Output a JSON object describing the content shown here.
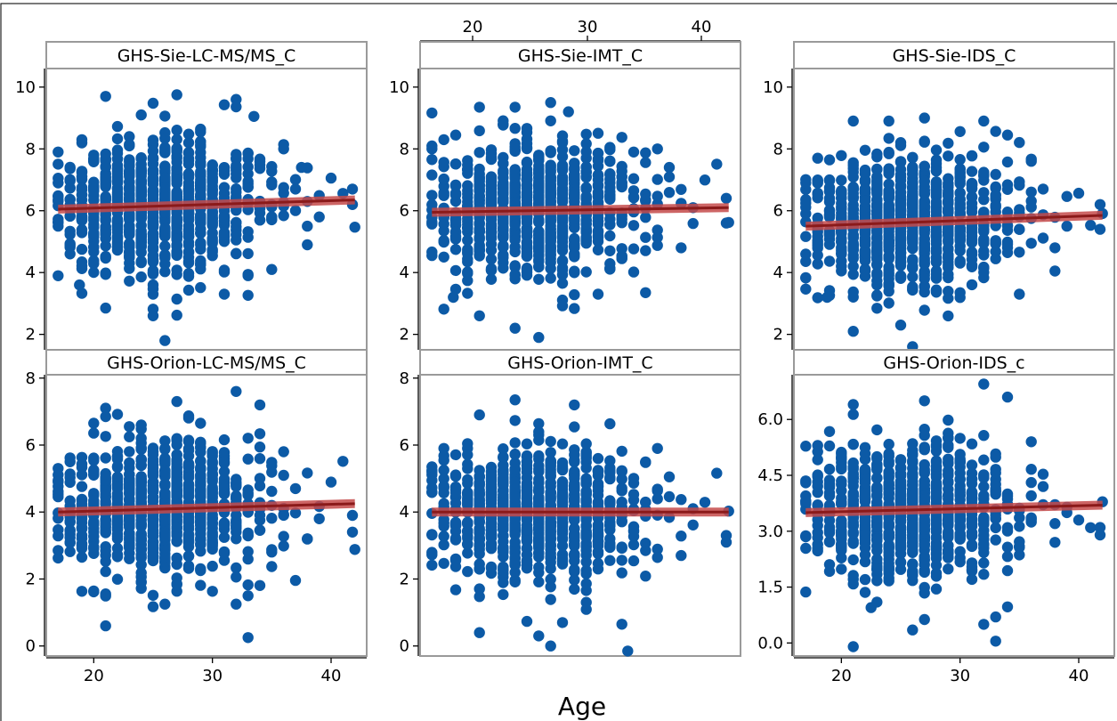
{
  "figure": {
    "xlabel": "Age"
  },
  "colors": {
    "points": "#0c5aa6",
    "fit_line": "#8b1a1a",
    "fit_band": "#c44a4a",
    "frame": "#9a9a9a"
  },
  "chart_data": [
    {
      "type": "scatter",
      "title": "GHS-Sie-LC-MS/MS_C",
      "xlim": [
        16,
        43
      ],
      "ylim": [
        1.5,
        10.6
      ],
      "yticks": [
        "2",
        "4",
        "6",
        "8",
        "10"
      ],
      "xticks": [],
      "fit": [
        [
          17,
          6.05
        ],
        [
          42,
          6.35
        ]
      ],
      "n_points": 820,
      "extremes": [
        [
          21,
          9.7
        ],
        [
          27,
          9.75
        ],
        [
          32,
          9.6
        ],
        [
          24,
          9.1
        ],
        [
          33.5,
          9.05
        ],
        [
          26,
          1.8
        ],
        [
          25,
          2.6
        ],
        [
          21,
          2.85
        ],
        [
          25,
          3.3
        ],
        [
          31,
          3.3
        ],
        [
          18.8,
          3.6
        ],
        [
          33,
          3.9
        ],
        [
          35,
          4.1
        ],
        [
          41.8,
          6.2
        ],
        [
          41.8,
          6.7
        ],
        [
          38,
          6.3
        ],
        [
          37,
          6.7
        ],
        [
          39,
          5.8
        ],
        [
          38,
          5.5
        ],
        [
          36,
          8.0
        ],
        [
          37.5,
          7.4
        ],
        [
          17,
          7.9
        ],
        [
          17,
          6.9
        ],
        [
          19,
          8.3
        ]
      ]
    },
    {
      "type": "scatter",
      "title": "GHS-Sie-IMT_C",
      "xlim": [
        16,
        43
      ],
      "ylim": [
        1.5,
        10.6
      ],
      "yticks": [
        "2",
        "4",
        "6",
        "8",
        "10"
      ],
      "xticks": [],
      "fit": [
        [
          17,
          5.95
        ],
        [
          42,
          6.1
        ]
      ],
      "n_points": 820,
      "extremes": [
        [
          27,
          9.5
        ],
        [
          24,
          9.35
        ],
        [
          21,
          9.35
        ],
        [
          28.5,
          9.2
        ],
        [
          24,
          2.2
        ],
        [
          26,
          1.9
        ],
        [
          21,
          2.6
        ],
        [
          18.8,
          3.2
        ],
        [
          31,
          3.3
        ],
        [
          35,
          3.35
        ],
        [
          38,
          4.8
        ],
        [
          41.8,
          5.6
        ],
        [
          41.8,
          6.4
        ],
        [
          39,
          6.1
        ],
        [
          36,
          8.0
        ],
        [
          37,
          7.4
        ],
        [
          17,
          8.0
        ],
        [
          17,
          6.5
        ],
        [
          18,
          8.3
        ]
      ]
    },
    {
      "type": "scatter",
      "title": "GHS-Sie-IDS_C",
      "xlim": [
        16,
        43
      ],
      "ylim": [
        1.5,
        10.6
      ],
      "yticks": [
        "2",
        "4",
        "6",
        "8",
        "10"
      ],
      "xticks": [],
      "fit": [
        [
          17,
          5.5
        ],
        [
          42,
          5.85
        ]
      ],
      "n_points": 820,
      "extremes": [
        [
          27,
          9.0
        ],
        [
          24,
          8.9
        ],
        [
          21,
          8.9
        ],
        [
          32,
          8.9
        ],
        [
          34,
          8.45
        ],
        [
          26,
          1.6
        ],
        [
          25,
          2.3
        ],
        [
          21,
          2.1
        ],
        [
          18.8,
          3.2
        ],
        [
          35,
          3.3
        ],
        [
          38,
          4.8
        ],
        [
          41.8,
          5.4
        ],
        [
          41.8,
          6.2
        ],
        [
          39,
          5.5
        ],
        [
          36,
          7.6
        ],
        [
          37,
          6.7
        ],
        [
          17,
          6.9
        ],
        [
          17,
          6.25
        ],
        [
          18,
          7.7
        ]
      ]
    },
    {
      "type": "scatter",
      "title": "GHS-Orion-LC-MS/MS_C",
      "xlim": [
        16,
        43
      ],
      "ylim": [
        -0.3,
        8.1
      ],
      "yticks": [
        "0",
        "2",
        "4",
        "6",
        "8"
      ],
      "xticks": [
        "20",
        "30",
        "40"
      ],
      "fit": [
        [
          17,
          4.0
        ],
        [
          42,
          4.25
        ]
      ],
      "n_points": 820,
      "extremes": [
        [
          32,
          7.6
        ],
        [
          34,
          7.2
        ],
        [
          21,
          7.1
        ],
        [
          27,
          7.3
        ],
        [
          33,
          0.25
        ],
        [
          21,
          0.6
        ],
        [
          26,
          1.25
        ],
        [
          32,
          1.25
        ],
        [
          33,
          1.5
        ],
        [
          38,
          3.2
        ],
        [
          41.8,
          3.4
        ],
        [
          41.8,
          3.9
        ],
        [
          39,
          3.8
        ],
        [
          36,
          5.8
        ],
        [
          37,
          4.7
        ],
        [
          17,
          5.3
        ],
        [
          17,
          4.9
        ],
        [
          18,
          5.5
        ]
      ]
    },
    {
      "type": "scatter",
      "title": "GHS-Orion-IMT_C",
      "xlim": [
        16,
        43
      ],
      "ylim": [
        -0.3,
        8.1
      ],
      "yticks": [
        "0",
        "2",
        "4",
        "6",
        "8"
      ],
      "xticks": [
        "20",
        "30",
        "40"
      ],
      "fit": [
        [
          17,
          4.0
        ],
        [
          42,
          4.0
        ]
      ],
      "n_points": 820,
      "extremes": [
        [
          24,
          7.35
        ],
        [
          29,
          7.2
        ],
        [
          21,
          6.9
        ],
        [
          33.5,
          -0.15
        ],
        [
          27,
          0.0
        ],
        [
          21,
          0.4
        ],
        [
          26,
          0.3
        ],
        [
          28,
          0.7
        ],
        [
          33,
          0.65
        ],
        [
          38,
          2.7
        ],
        [
          41.8,
          3.1
        ],
        [
          41.8,
          3.3
        ],
        [
          39,
          4.1
        ],
        [
          36,
          5.9
        ],
        [
          37,
          5.05
        ],
        [
          17,
          5.35
        ],
        [
          17,
          4.6
        ],
        [
          18,
          5.9
        ]
      ]
    },
    {
      "type": "scatter",
      "title": "GHS-Orion-IDS_c",
      "xlim": [
        16,
        43
      ],
      "ylim": [
        -0.35,
        7.2
      ],
      "yticks": [
        "0.0",
        "1.5",
        "3.0",
        "4.5",
        "6.0"
      ],
      "xticks": [
        "20",
        "30",
        "40"
      ],
      "fit": [
        [
          17,
          3.5
        ],
        [
          42,
          3.7
        ]
      ],
      "n_points": 820,
      "extremes": [
        [
          32,
          6.95
        ],
        [
          34,
          6.6
        ],
        [
          21,
          6.4
        ],
        [
          27,
          6.5
        ],
        [
          21,
          -0.1
        ],
        [
          33,
          0.05
        ],
        [
          26,
          0.35
        ],
        [
          32,
          0.5
        ],
        [
          33,
          0.7
        ],
        [
          22.5,
          0.95
        ],
        [
          38,
          2.7
        ],
        [
          41.8,
          2.9
        ],
        [
          41.8,
          3.1
        ],
        [
          39,
          3.5
        ],
        [
          36,
          5.4
        ],
        [
          37,
          4.2
        ],
        [
          17,
          4.3
        ],
        [
          17,
          4.35
        ],
        [
          18,
          5.3
        ]
      ]
    }
  ]
}
